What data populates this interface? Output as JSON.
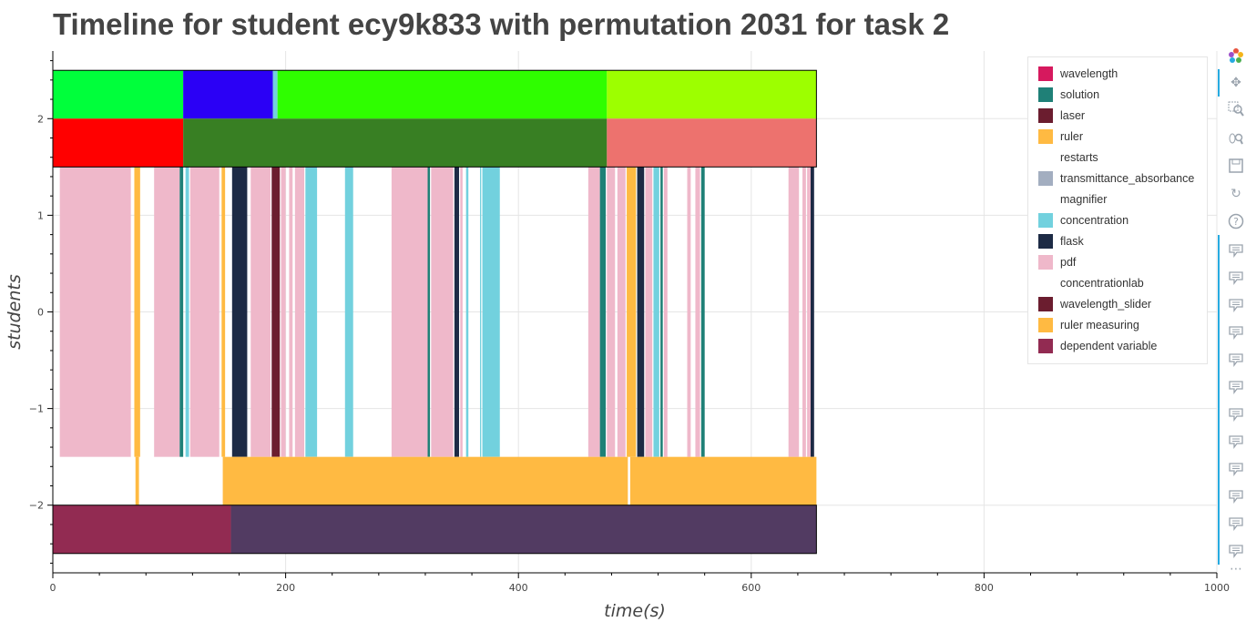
{
  "title": "Timeline for student ecy9k833 with permutation 2031 for task 2",
  "colors": {
    "wavelength": "#d6195e",
    "solution": "#1f8077",
    "laser": "#6b1d2f",
    "ruler": "#ffba42",
    "transmittance_absorbance": "#a3aec0",
    "concentration": "#72d1de",
    "flask": "#1d2b45",
    "pdf": "#efb8ca",
    "wavelength_slider": "#6b1d2f",
    "ruler_measuring": "#ffba42",
    "dependent_variable": "#922b52",
    "green1": "#00ff3b",
    "blue1": "#2b00f5",
    "green2": "#2ffe00",
    "yellowgreen": "#9dff00",
    "red1": "#ff0000",
    "darkgreen": "#387f23",
    "salmon": "#ed726e",
    "purple": "#523b62"
  },
  "chart_data": {
    "type": "bar",
    "orientation": "horizontal",
    "title": "Timeline for student ecy9k833 with permutation 2031 for task 2",
    "xlabel": "time(s)",
    "ylabel": "students",
    "xlim": [
      0,
      1000
    ],
    "ylim": [
      -2.7,
      2.7
    ],
    "x_ticks": [
      0,
      200,
      400,
      600,
      800,
      1000
    ],
    "y_ticks": [
      -2,
      -1,
      0,
      1,
      2
    ],
    "y_tick_labels": [
      "−2",
      "−1",
      "0",
      "1",
      "2"
    ],
    "grid": true,
    "legend_position": "top-right",
    "legend": [
      {
        "label": "wavelength",
        "color": "#d6195e"
      },
      {
        "label": "solution",
        "color": "#1f8077"
      },
      {
        "label": "laser",
        "color": "#6b1d2f"
      },
      {
        "label": "ruler",
        "color": "#ffba42"
      },
      {
        "label": "restarts",
        "color": ""
      },
      {
        "label": "transmittance_absorbance",
        "color": "#a3aec0"
      },
      {
        "label": "magnifier",
        "color": ""
      },
      {
        "label": "concentration",
        "color": "#72d1de"
      },
      {
        "label": "flask",
        "color": "#1d2b45"
      },
      {
        "label": "pdf",
        "color": "#efb8ca"
      },
      {
        "label": "concentrationlab",
        "color": ""
      },
      {
        "label": "wavelength_slider",
        "color": "#6b1d2f"
      },
      {
        "label": "ruler measuring",
        "color": "#ffba42"
      },
      {
        "label": "dependent variable",
        "color": "#922b52"
      }
    ],
    "bands": [
      {
        "y_range": [
          2,
          2.5
        ],
        "segments": [
          {
            "start": 0,
            "end": 112,
            "color": "#00ff3b"
          },
          {
            "start": 112,
            "end": 189,
            "color": "#2b00f5"
          },
          {
            "start": 189,
            "end": 193,
            "color": "#72d1de"
          },
          {
            "start": 193,
            "end": 476,
            "color": "#2ffe00"
          },
          {
            "start": 476,
            "end": 656,
            "color": "#9dff00"
          }
        ]
      },
      {
        "y_range": [
          1.5,
          2
        ],
        "segments": [
          {
            "start": 0,
            "end": 112,
            "color": "#ff0000"
          },
          {
            "start": 112,
            "end": 476,
            "color": "#387f23"
          },
          {
            "start": 476,
            "end": 656,
            "color": "#ed726e"
          }
        ]
      },
      {
        "y_range": [
          -1.5,
          1.5
        ],
        "segments": [
          {
            "start": 6,
            "end": 67,
            "color": "#efb8ca"
          },
          {
            "start": 70,
            "end": 75,
            "color": "#ffba42"
          },
          {
            "start": 87,
            "end": 109,
            "color": "#efb8ca"
          },
          {
            "start": 109,
            "end": 112,
            "color": "#1f8077"
          },
          {
            "start": 114,
            "end": 117,
            "color": "#72d1de"
          },
          {
            "start": 118,
            "end": 143,
            "color": "#efb8ca"
          },
          {
            "start": 145,
            "end": 148,
            "color": "#ffba42"
          },
          {
            "start": 154,
            "end": 167,
            "color": "#1d2b45"
          },
          {
            "start": 170,
            "end": 187,
            "color": "#efb8ca"
          },
          {
            "start": 188,
            "end": 195,
            "color": "#6b1d2f"
          },
          {
            "start": 196,
            "end": 200,
            "color": "#efb8ca"
          },
          {
            "start": 203,
            "end": 206,
            "color": "#efb8ca"
          },
          {
            "start": 208,
            "end": 216,
            "color": "#efb8ca"
          },
          {
            "start": 217,
            "end": 227,
            "color": "#72d1de"
          },
          {
            "start": 251,
            "end": 258,
            "color": "#72d1de"
          },
          {
            "start": 291,
            "end": 322,
            "color": "#efb8ca"
          },
          {
            "start": 322,
            "end": 324,
            "color": "#1f8077"
          },
          {
            "start": 325,
            "end": 344,
            "color": "#efb8ca"
          },
          {
            "start": 345,
            "end": 349,
            "color": "#1d2b45"
          },
          {
            "start": 350,
            "end": 352,
            "color": "#efb8ca"
          },
          {
            "start": 355,
            "end": 357,
            "color": "#72d1de"
          },
          {
            "start": 367,
            "end": 368,
            "color": "#72d1de"
          },
          {
            "start": 369,
            "end": 384,
            "color": "#72d1de"
          },
          {
            "start": 460,
            "end": 470,
            "color": "#efb8ca"
          },
          {
            "start": 470,
            "end": 475,
            "color": "#1f8077"
          },
          {
            "start": 476,
            "end": 483,
            "color": "#efb8ca"
          },
          {
            "start": 485,
            "end": 492,
            "color": "#efb8ca"
          },
          {
            "start": 493,
            "end": 501,
            "color": "#ffba42"
          },
          {
            "start": 502,
            "end": 508,
            "color": "#1d2b45"
          },
          {
            "start": 509,
            "end": 515,
            "color": "#efb8ca"
          },
          {
            "start": 516,
            "end": 521,
            "color": "#72d1de"
          },
          {
            "start": 522,
            "end": 524,
            "color": "#1f8077"
          },
          {
            "start": 525,
            "end": 528,
            "color": "#efb8ca"
          },
          {
            "start": 545,
            "end": 548,
            "color": "#efb8ca"
          },
          {
            "start": 552,
            "end": 556,
            "color": "#efb8ca"
          },
          {
            "start": 557,
            "end": 560,
            "color": "#1f8077"
          },
          {
            "start": 632,
            "end": 641,
            "color": "#efb8ca"
          },
          {
            "start": 644,
            "end": 647,
            "color": "#efb8ca"
          },
          {
            "start": 648,
            "end": 651,
            "color": "#efb8ca"
          },
          {
            "start": 651,
            "end": 654,
            "color": "#1d2b45"
          }
        ]
      },
      {
        "y_range": [
          -2,
          -1.5
        ],
        "segments": [
          {
            "start": 71,
            "end": 74,
            "color": "#ffba42"
          },
          {
            "start": 146,
            "end": 494,
            "color": "#ffba42"
          },
          {
            "start": 496,
            "end": 656,
            "color": "#ffba42"
          }
        ]
      },
      {
        "y_range": [
          -2.5,
          -2
        ],
        "segments": [
          {
            "start": 0,
            "end": 153,
            "color": "#922b52"
          },
          {
            "start": 153,
            "end": 656,
            "color": "#523b62"
          }
        ]
      }
    ],
    "bands_outline": [
      {
        "y_range": [
          1.5,
          2.5
        ],
        "x_range": [
          0,
          656
        ]
      },
      {
        "y_range": [
          -2.5,
          -2
        ],
        "x_range": [
          0,
          656
        ]
      }
    ]
  }
}
